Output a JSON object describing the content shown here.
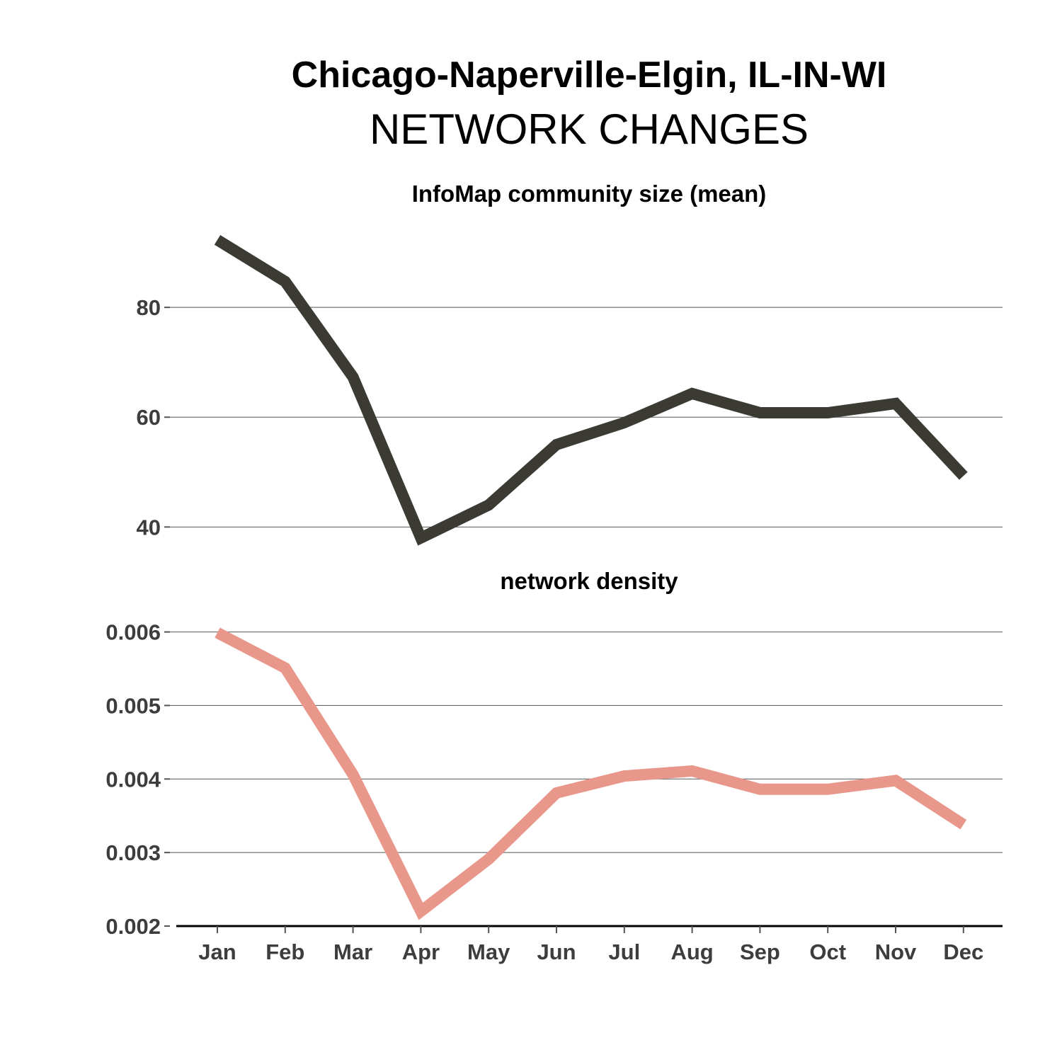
{
  "title": "Chicago-Naperville-Elgin, IL-IN-WI",
  "subtitle": "NETWORK CHANGES",
  "chart_data": [
    {
      "type": "line",
      "title": "InfoMap community size (mean)",
      "categories": [
        "Jan",
        "Feb",
        "Mar",
        "Apr",
        "May",
        "Jun",
        "Jul",
        "Aug",
        "Sep",
        "Oct",
        "Nov",
        "Dec"
      ],
      "values": [
        92.3,
        84.7,
        67.3,
        38.0,
        44.0,
        55.0,
        59.0,
        64.3,
        60.8,
        60.8,
        62.5,
        49.3
      ],
      "yticks": [
        40,
        60,
        80
      ],
      "ytick_labels": [
        "40",
        "60",
        "80"
      ],
      "ylim": [
        35.4,
        97.3
      ],
      "color": "#3b3a33",
      "grid": true
    },
    {
      "type": "line",
      "title": "network density",
      "categories": [
        "Jan",
        "Feb",
        "Mar",
        "Apr",
        "May",
        "Jun",
        "Jul",
        "Aug",
        "Sep",
        "Oct",
        "Nov",
        "Dec"
      ],
      "values": [
        0.00599,
        0.00551,
        0.00406,
        0.0022,
        0.00291,
        0.00381,
        0.00404,
        0.00411,
        0.00386,
        0.00386,
        0.00398,
        0.00338
      ],
      "yticks": [
        0.002,
        0.003,
        0.004,
        0.005,
        0.006
      ],
      "ytick_labels": [
        "0.002",
        "0.003",
        "0.004",
        "0.005",
        "0.006"
      ],
      "ylim": [
        0.002,
        0.00641
      ],
      "color": "#e8978a",
      "grid": true
    }
  ]
}
